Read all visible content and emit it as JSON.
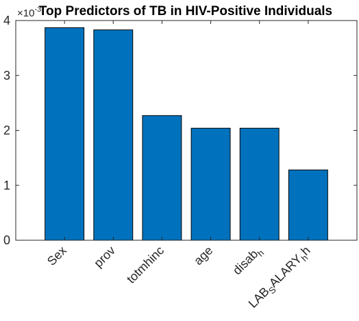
{
  "chart_data": {
    "type": "bar",
    "title": "Top Predictors of TB in HIV-Positive Individuals",
    "xlabel": "",
    "ylabel": "",
    "y_exponent_label": "×10^-3",
    "y_exponent_base": "×10",
    "y_exponent_power": "-3",
    "categories": [
      "Sex",
      "prov",
      "totmhinc",
      "age",
      "disab_h",
      "LAB_SALARY_h"
    ],
    "category_parts": [
      [
        {
          "t": "Sex"
        }
      ],
      [
        {
          "t": "prov"
        }
      ],
      [
        {
          "t": "totmhinc"
        }
      ],
      [
        {
          "t": "age"
        }
      ],
      [
        {
          "t": "disab"
        },
        {
          "t": "h",
          "sub": true
        }
      ],
      [
        {
          "t": "LAB"
        },
        {
          "t": "S",
          "sub": true
        },
        {
          "t": "ALARY"
        },
        {
          "t": "h",
          "sub": true
        },
        {
          "t": "h"
        }
      ]
    ],
    "values": [
      3.87,
      3.83,
      2.27,
      2.04,
      2.04,
      1.28
    ],
    "ylim": [
      0,
      4
    ],
    "yticks": [
      0,
      1,
      2,
      3,
      4
    ],
    "bar_color": "#0072BD",
    "grid": false,
    "legend": "none"
  }
}
